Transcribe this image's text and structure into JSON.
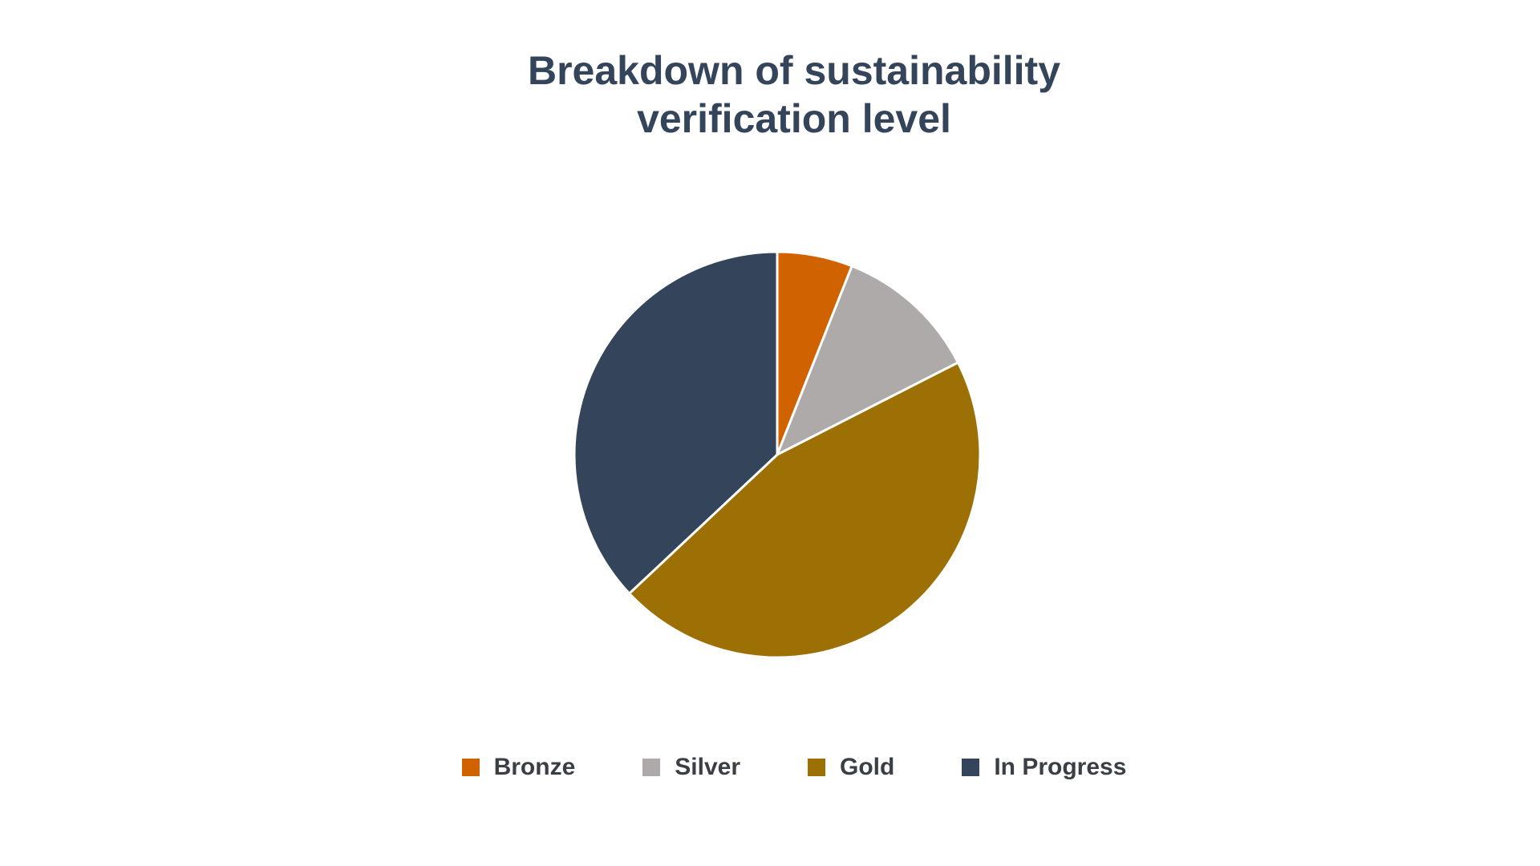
{
  "chart_data": {
    "type": "pie",
    "title_lines": [
      "Breakdown of sustainability",
      "verification level"
    ],
    "categories": [
      "Bronze",
      "Silver",
      "Gold",
      "In Progress"
    ],
    "values": [
      6,
      11.5,
      45.5,
      37
    ],
    "colors": [
      "#d06200",
      "#aeaaaa",
      "#9c7004",
      "#34445a"
    ],
    "legend_position": "bottom",
    "start_angle_deg": 0,
    "direction": "clockwise"
  }
}
